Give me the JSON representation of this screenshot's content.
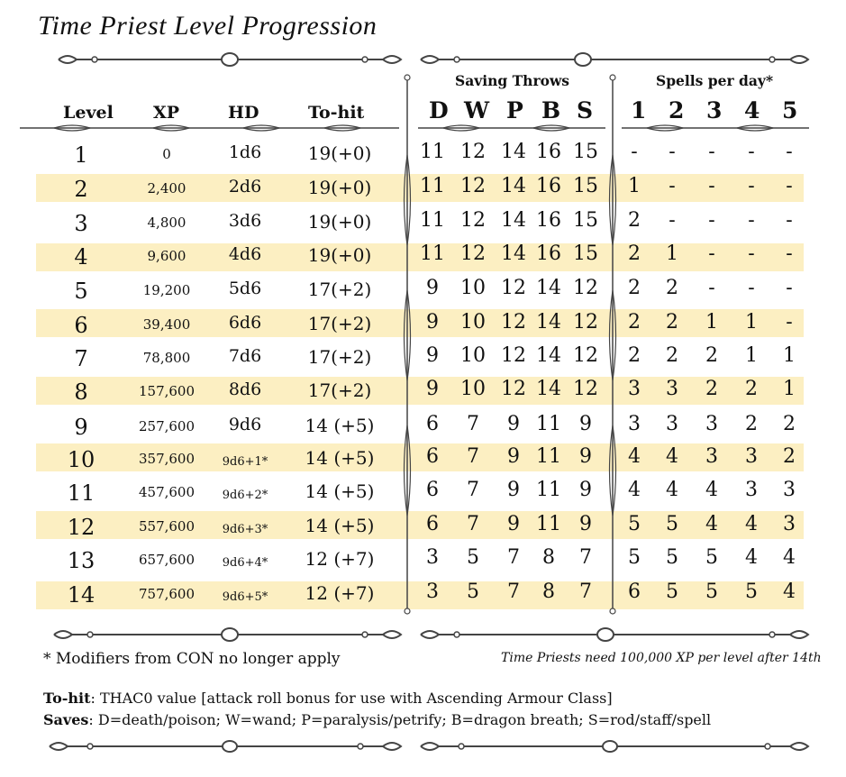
{
  "title": "Time Priest Level Progression",
  "headers": {
    "level": "Level",
    "xp": "XP",
    "hd": "HD",
    "tohit": "To-hit",
    "saving_throws": "Saving Throws",
    "spells_per_day": "Spells per day*",
    "saves": [
      "D",
      "W",
      "P",
      "B",
      "S"
    ],
    "spell_levels": [
      "1",
      "2",
      "3",
      "4",
      "5"
    ]
  },
  "rows": [
    {
      "level": "1",
      "xp": "0",
      "hd": "1d6",
      "tohit": "19(+0)",
      "saves": [
        "11",
        "12",
        "14",
        "16",
        "15"
      ],
      "spells": [
        "-",
        "-",
        "-",
        "-",
        "-"
      ]
    },
    {
      "level": "2",
      "xp": "2,400",
      "hd": "2d6",
      "tohit": "19(+0)",
      "saves": [
        "11",
        "12",
        "14",
        "16",
        "15"
      ],
      "spells": [
        "1",
        "-",
        "-",
        "-",
        "-"
      ]
    },
    {
      "level": "3",
      "xp": "4,800",
      "hd": "3d6",
      "tohit": "19(+0)",
      "saves": [
        "11",
        "12",
        "14",
        "16",
        "15"
      ],
      "spells": [
        "2",
        "-",
        "-",
        "-",
        "-"
      ]
    },
    {
      "level": "4",
      "xp": "9,600",
      "hd": "4d6",
      "tohit": "19(+0)",
      "saves": [
        "11",
        "12",
        "14",
        "16",
        "15"
      ],
      "spells": [
        "2",
        "1",
        "-",
        "-",
        "-"
      ]
    },
    {
      "level": "5",
      "xp": "19,200",
      "hd": "5d6",
      "tohit": "17(+2)",
      "saves": [
        "9",
        "10",
        "12",
        "14",
        "12"
      ],
      "spells": [
        "2",
        "2",
        "-",
        "-",
        "-"
      ]
    },
    {
      "level": "6",
      "xp": "39,400",
      "hd": "6d6",
      "tohit": "17(+2)",
      "saves": [
        "9",
        "10",
        "12",
        "14",
        "12"
      ],
      "spells": [
        "2",
        "2",
        "1",
        "1",
        "-"
      ]
    },
    {
      "level": "7",
      "xp": "78,800",
      "hd": "7d6",
      "tohit": "17(+2)",
      "saves": [
        "9",
        "10",
        "12",
        "14",
        "12"
      ],
      "spells": [
        "2",
        "2",
        "2",
        "1",
        "1"
      ]
    },
    {
      "level": "8",
      "xp": "157,600",
      "hd": "8d6",
      "tohit": "17(+2)",
      "saves": [
        "9",
        "10",
        "12",
        "14",
        "12"
      ],
      "spells": [
        "3",
        "3",
        "2",
        "2",
        "1"
      ]
    },
    {
      "level": "9",
      "xp": "257,600",
      "hd": "9d6",
      "tohit": "14 (+5)",
      "saves": [
        "6",
        "7",
        "9",
        "11",
        "9"
      ],
      "spells": [
        "3",
        "3",
        "3",
        "2",
        "2"
      ]
    },
    {
      "level": "10",
      "xp": "357,600",
      "hd": "9d6+1*",
      "tohit": "14 (+5)",
      "saves": [
        "6",
        "7",
        "9",
        "11",
        "9"
      ],
      "spells": [
        "4",
        "4",
        "3",
        "3",
        "2"
      ]
    },
    {
      "level": "11",
      "xp": "457,600",
      "hd": "9d6+2*",
      "tohit": "14 (+5)",
      "saves": [
        "6",
        "7",
        "9",
        "11",
        "9"
      ],
      "spells": [
        "4",
        "4",
        "4",
        "3",
        "3"
      ]
    },
    {
      "level": "12",
      "xp": "557,600",
      "hd": "9d6+3*",
      "tohit": "14 (+5)",
      "saves": [
        "6",
        "7",
        "9",
        "11",
        "9"
      ],
      "spells": [
        "5",
        "5",
        "4",
        "4",
        "3"
      ]
    },
    {
      "level": "13",
      "xp": "657,600",
      "hd": "9d6+4*",
      "tohit": "12 (+7)",
      "saves": [
        "3",
        "5",
        "7",
        "8",
        "7"
      ],
      "spells": [
        "5",
        "5",
        "5",
        "4",
        "4"
      ]
    },
    {
      "level": "14",
      "xp": "757,600",
      "hd": "9d6+5*",
      "tohit": "12 (+7)",
      "saves": [
        "3",
        "5",
        "7",
        "8",
        "7"
      ],
      "spells": [
        "6",
        "5",
        "5",
        "5",
        "4"
      ]
    }
  ],
  "footnote": "* Modifiers from CON no longer apply",
  "footnote_right": "Time Priests need 100,000 XP per level after 14th",
  "legend": {
    "tohit_label": "To-hit",
    "tohit_text": ": THAC0 value [attack roll bonus for use with Ascending Armour Class]",
    "saves_label": "Saves",
    "saves_text": ": D=death/poison; W=wand; P=paralysis/petrify; B=dragon breath; S=rod/staff/spell"
  },
  "colors": {
    "band": "#fcefc2",
    "ornament": "#444444"
  }
}
